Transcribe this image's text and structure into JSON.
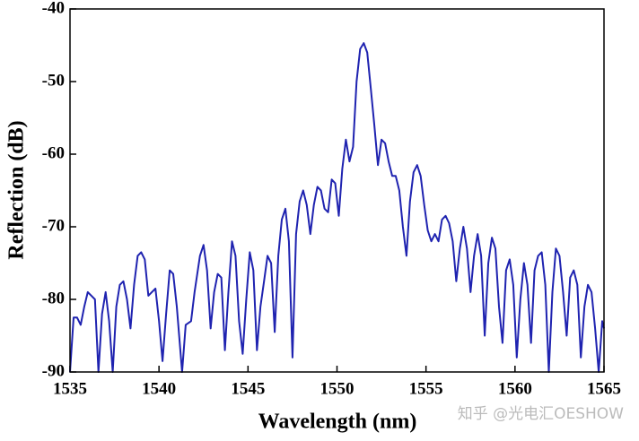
{
  "chart_data": {
    "type": "line",
    "xlabel": "Wavelength (nm)",
    "ylabel": "Reflection (dB)",
    "annotation": "知乎 @光电汇OESHOW",
    "xlim": [
      1535,
      1565
    ],
    "xticks": [
      1535,
      1540,
      1545,
      1550,
      1555,
      1560,
      1565
    ],
    "ylim": [
      -90,
      -40
    ],
    "yticks": [
      -90,
      -80,
      -70,
      -60,
      -50,
      -40
    ],
    "series": [
      {
        "color": "#1f23b0",
        "x": [
          1535.0,
          1535.2,
          1535.4,
          1535.6,
          1535.8,
          1536.0,
          1536.2,
          1536.4,
          1536.6,
          1536.8,
          1537.0,
          1537.2,
          1537.4,
          1537.6,
          1537.8,
          1538.0,
          1538.2,
          1538.4,
          1538.6,
          1538.8,
          1539.0,
          1539.2,
          1539.4,
          1539.6,
          1539.8,
          1540.0,
          1540.2,
          1540.4,
          1540.6,
          1540.8,
          1541.0,
          1541.3,
          1541.5,
          1541.8,
          1542.0,
          1542.3,
          1542.5,
          1542.7,
          1542.9,
          1543.1,
          1543.3,
          1543.5,
          1543.7,
          1543.9,
          1544.1,
          1544.3,
          1544.5,
          1544.7,
          1544.9,
          1545.1,
          1545.3,
          1545.5,
          1545.7,
          1545.9,
          1546.1,
          1546.3,
          1546.5,
          1546.7,
          1546.9,
          1547.1,
          1547.3,
          1547.5,
          1547.7,
          1547.9,
          1548.1,
          1548.3,
          1548.5,
          1548.7,
          1548.9,
          1549.1,
          1549.3,
          1549.5,
          1549.7,
          1549.9,
          1550.1,
          1550.3,
          1550.5,
          1550.7,
          1550.9,
          1551.1,
          1551.3,
          1551.5,
          1551.7,
          1551.9,
          1552.1,
          1552.3,
          1552.5,
          1552.7,
          1552.9,
          1553.1,
          1553.3,
          1553.5,
          1553.7,
          1553.9,
          1554.1,
          1554.3,
          1554.5,
          1554.7,
          1554.9,
          1555.1,
          1555.3,
          1555.5,
          1555.7,
          1555.9,
          1556.1,
          1556.3,
          1556.5,
          1556.7,
          1556.9,
          1557.1,
          1557.3,
          1557.5,
          1557.7,
          1557.9,
          1558.1,
          1558.3,
          1558.5,
          1558.7,
          1558.9,
          1559.1,
          1559.3,
          1559.5,
          1559.7,
          1559.9,
          1560.1,
          1560.3,
          1560.5,
          1560.7,
          1560.9,
          1561.1,
          1561.3,
          1561.5,
          1561.7,
          1561.9,
          1562.1,
          1562.3,
          1562.5,
          1562.7,
          1562.9,
          1563.1,
          1563.3,
          1563.5,
          1563.7,
          1563.9,
          1564.1,
          1564.3,
          1564.5,
          1564.7,
          1564.9,
          1565.0
        ],
        "values": [
          -90,
          -82.5,
          -82.5,
          -83.5,
          -81,
          -79,
          -79.5,
          -80,
          -90,
          -82,
          -79,
          -83,
          -90,
          -81,
          -78,
          -77.5,
          -80,
          -84,
          -78,
          -74,
          -73.5,
          -74.5,
          -79.5,
          -79,
          -78.5,
          -83,
          -88.5,
          -82,
          -76,
          -76.5,
          -81,
          -90,
          -83.5,
          -83,
          -79,
          -74,
          -72.5,
          -76,
          -84,
          -79,
          -76.5,
          -77,
          -87,
          -79,
          -72,
          -74,
          -83,
          -87.5,
          -80,
          -73.5,
          -76,
          -87,
          -81,
          -77.5,
          -74,
          -75,
          -84.5,
          -74,
          -69,
          -67.5,
          -72,
          -88,
          -71,
          -66.5,
          -65,
          -67,
          -71,
          -67,
          -64.5,
          -65,
          -67.5,
          -68,
          -63.5,
          -64,
          -68.5,
          -62,
          -58,
          -61,
          -59,
          -50,
          -45.5,
          -44.7,
          -46,
          -51,
          -56,
          -61.5,
          -58,
          -58.5,
          -61,
          -63,
          -63,
          -65,
          -70,
          -74,
          -66.5,
          -62.5,
          -61.5,
          -63,
          -67,
          -70.5,
          -72,
          -71,
          -72,
          -69,
          -68.5,
          -69.5,
          -72,
          -77.5,
          -73,
          -70,
          -73,
          -79,
          -74,
          -71,
          -74,
          -85,
          -75,
          -71.5,
          -73,
          -81,
          -86,
          -76,
          -74.5,
          -78,
          -88,
          -80,
          -75,
          -78,
          -86,
          -76,
          -74,
          -73.5,
          -78,
          -90,
          -79,
          -73,
          -74,
          -79,
          -85,
          -77,
          -76,
          -78,
          -88,
          -81,
          -78,
          -79,
          -84,
          -90,
          -83,
          -84
        ]
      }
    ]
  }
}
